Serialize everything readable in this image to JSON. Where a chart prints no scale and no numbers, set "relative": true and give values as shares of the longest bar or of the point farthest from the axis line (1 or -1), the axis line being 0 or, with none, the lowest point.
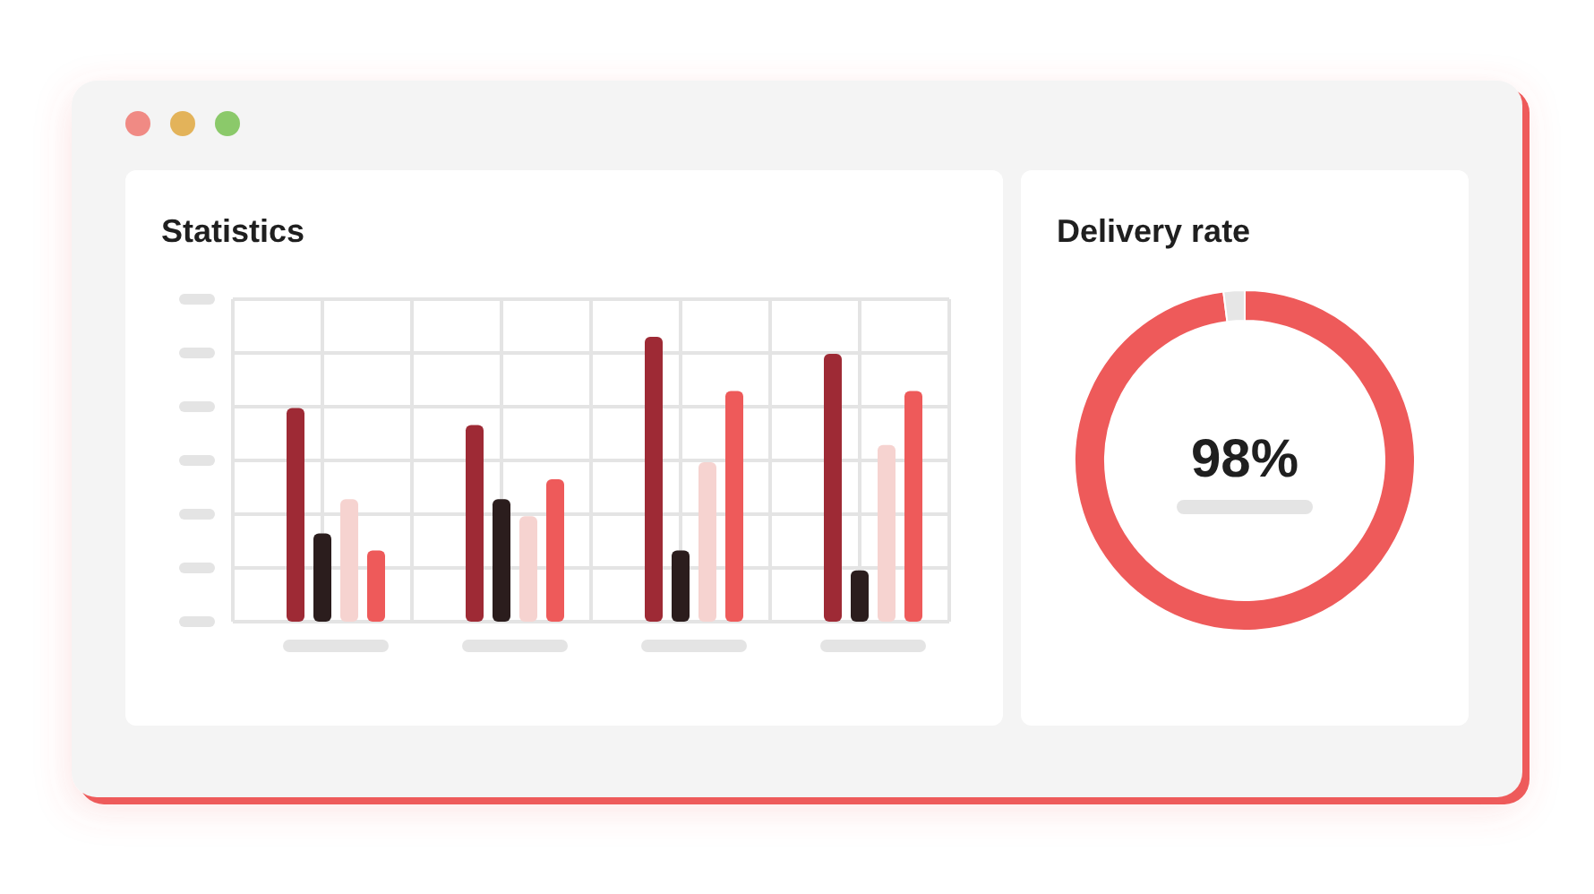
{
  "chart_data": [
    {
      "type": "bar",
      "title": "Statistics",
      "relative": true,
      "grid": true,
      "categories": [
        null,
        null,
        null,
        null
      ],
      "series": [
        {
          "color": "#9e2a35",
          "values": [
            0.75,
            0.69,
            1,
            0.94
          ]
        },
        {
          "color": "#2b1d1d",
          "values": [
            0.31,
            0.43,
            0.25,
            0.18
          ]
        },
        {
          "color": "#f6d3d0",
          "values": [
            0.43,
            0.37,
            0.56,
            0.62
          ]
        },
        {
          "color": "#ee5a5a",
          "values": [
            0.25,
            0.5,
            0.81,
            0.81
          ]
        }
      ]
    },
    {
      "type": "donut",
      "title": "Delivery rate",
      "categories": [
        null,
        null
      ],
      "values": [
        98,
        2
      ],
      "colors": [
        "#ee5a5a",
        "#e6e6e6"
      ],
      "annotations": [
        "98%"
      ]
    }
  ]
}
